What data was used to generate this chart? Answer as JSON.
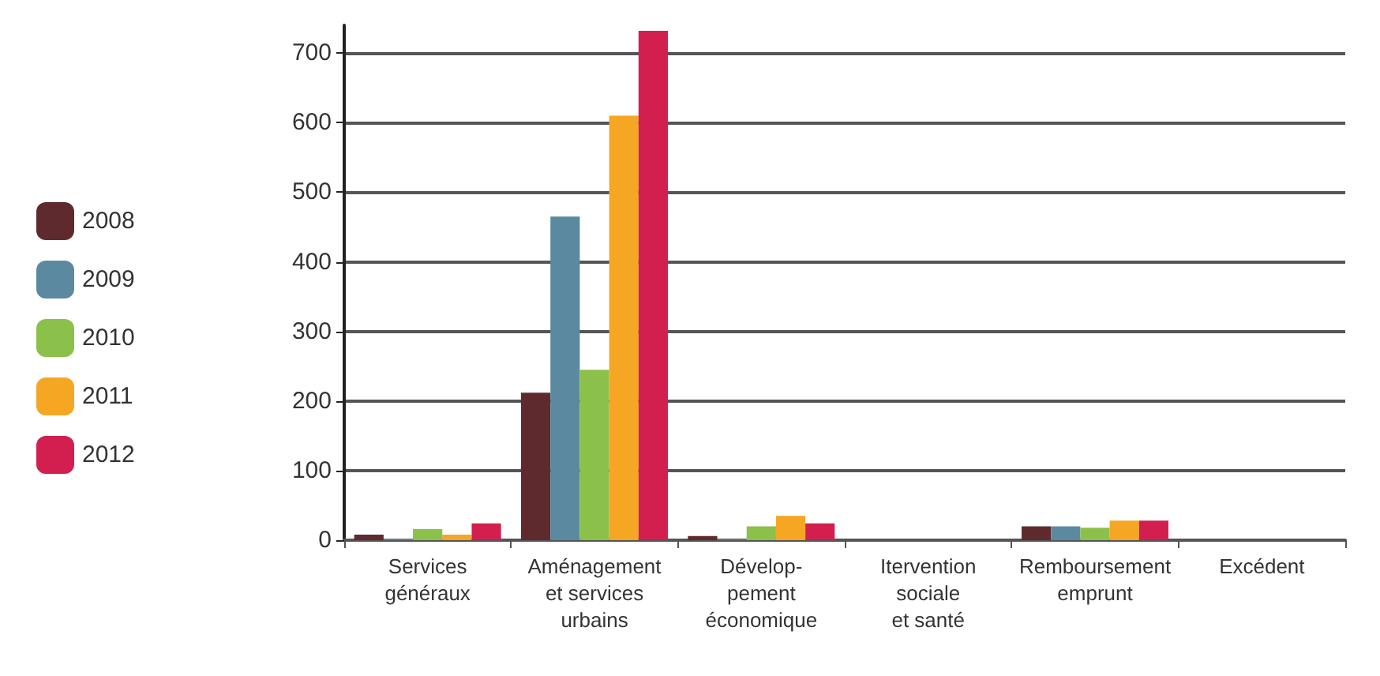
{
  "chart_data": {
    "type": "bar",
    "categories": [
      "Services\ngénéraux",
      "Aménagement\net services\nurbains",
      "Dévelop-\npement\néconomique",
      "Itervention\nsociale\net santé",
      "Remboursement\nemprunt",
      "Excédent"
    ],
    "series": [
      {
        "name": "2008",
        "color": "#5e2a2e",
        "values": [
          8,
          212,
          6,
          null,
          20,
          null
        ]
      },
      {
        "name": "2009",
        "color": "#5b8aa0",
        "values": [
          2,
          465,
          1,
          null,
          20,
          null
        ]
      },
      {
        "name": "2010",
        "color": "#8bc04a",
        "values": [
          16,
          245,
          20,
          null,
          18,
          null
        ]
      },
      {
        "name": "2011",
        "color": "#f5a623",
        "values": [
          8,
          610,
          35,
          null,
          28,
          null
        ]
      },
      {
        "name": "2012",
        "color": "#d21f4f",
        "values": [
          24,
          732,
          24,
          null,
          28,
          null
        ]
      }
    ],
    "ylim": [
      0,
      740
    ],
    "yticks": [
      0,
      100,
      200,
      300,
      400,
      500,
      600,
      700
    ],
    "grid": "y",
    "legend": "left"
  }
}
